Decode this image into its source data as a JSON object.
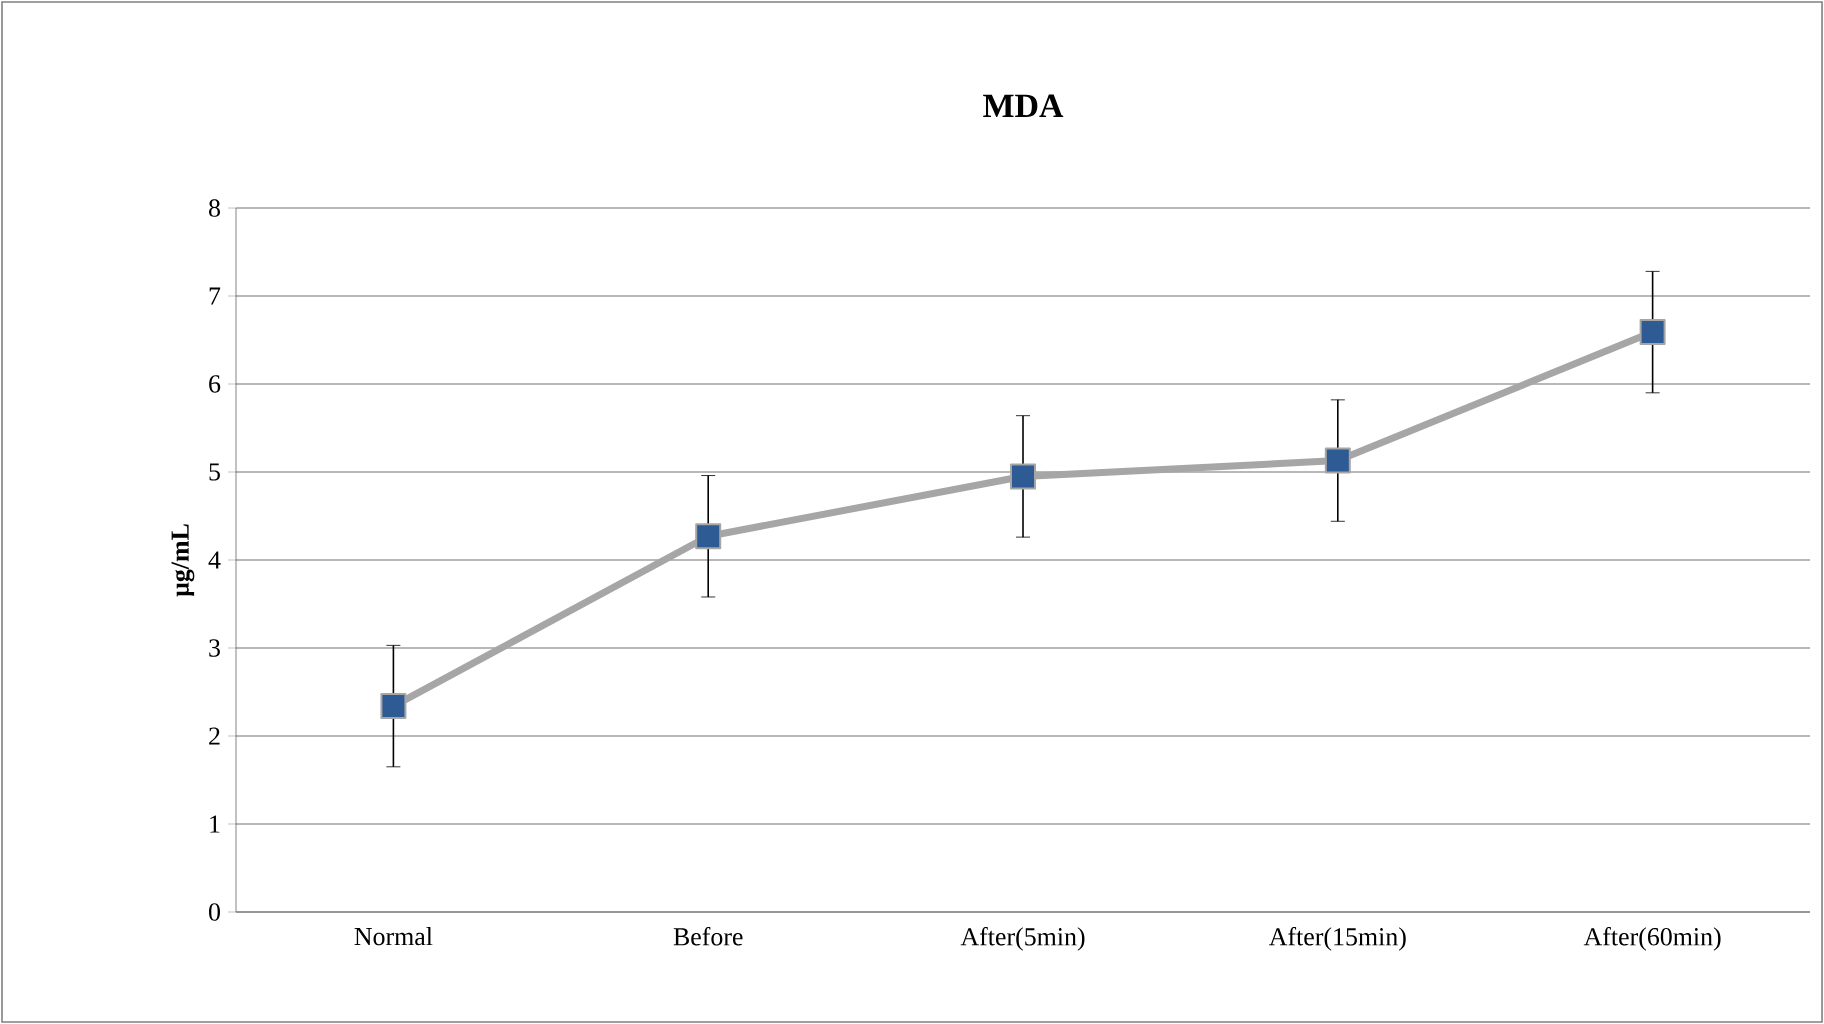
{
  "chart_data": {
    "type": "line",
    "title": "MDA",
    "ylabel": "μg/mL",
    "categories": [
      "Normal",
      "Before",
      "After(5min)",
      "After(15min)",
      "After(60min)"
    ],
    "series": [
      {
        "color": "#a6a6a6",
        "values": [
          2.34,
          4.27,
          4.95,
          5.13,
          6.59
        ],
        "errors": [
          0.69,
          0.69,
          0.69,
          0.69,
          0.69
        ]
      }
    ],
    "ylim": [
      0,
      8
    ],
    "yticks": [
      0,
      1,
      2,
      3,
      4,
      5,
      6,
      7,
      8
    ],
    "grid": "y",
    "marker": "square",
    "line_style": "solid"
  }
}
